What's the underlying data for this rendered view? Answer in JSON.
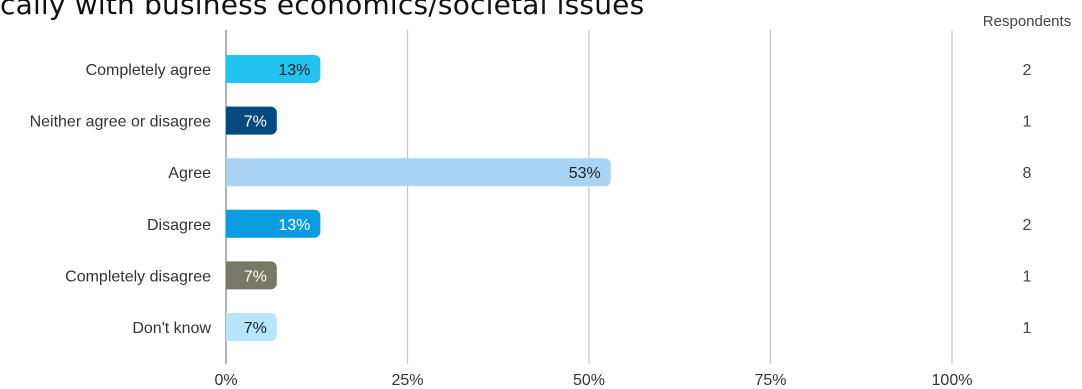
{
  "title": "cally with business economics/societal issues",
  "chart_data": {
    "type": "bar",
    "orientation": "horizontal",
    "categories": [
      "Completely agree",
      "Neither agree or disagree",
      "Agree",
      "Disagree",
      "Completely disagree",
      "Don't know"
    ],
    "values": [
      13,
      7,
      53,
      13,
      7,
      7
    ],
    "value_labels": [
      "13%",
      "7%",
      "53%",
      "13%",
      "7%",
      "7%"
    ],
    "colors": [
      "#24c4f2",
      "#054a7e",
      "#a9d4f5",
      "#0a9be0",
      "#787866",
      "#b7e5fb"
    ],
    "label_colors": [
      "#222222",
      "#ffffff",
      "#222222",
      "#ffffff",
      "#ffffff",
      "#222222"
    ],
    "respondents_header": "Respondents",
    "respondents": [
      "2",
      "1",
      "8",
      "2",
      "1",
      "1"
    ],
    "xlim": [
      0,
      100
    ],
    "xticks": [
      0,
      25,
      50,
      75,
      100
    ],
    "xtick_labels": [
      "0%",
      "25%",
      "50%",
      "75%",
      "100%"
    ],
    "grid": true,
    "gridline_color": "#c8c8c8",
    "axis_color": "#888888"
  }
}
